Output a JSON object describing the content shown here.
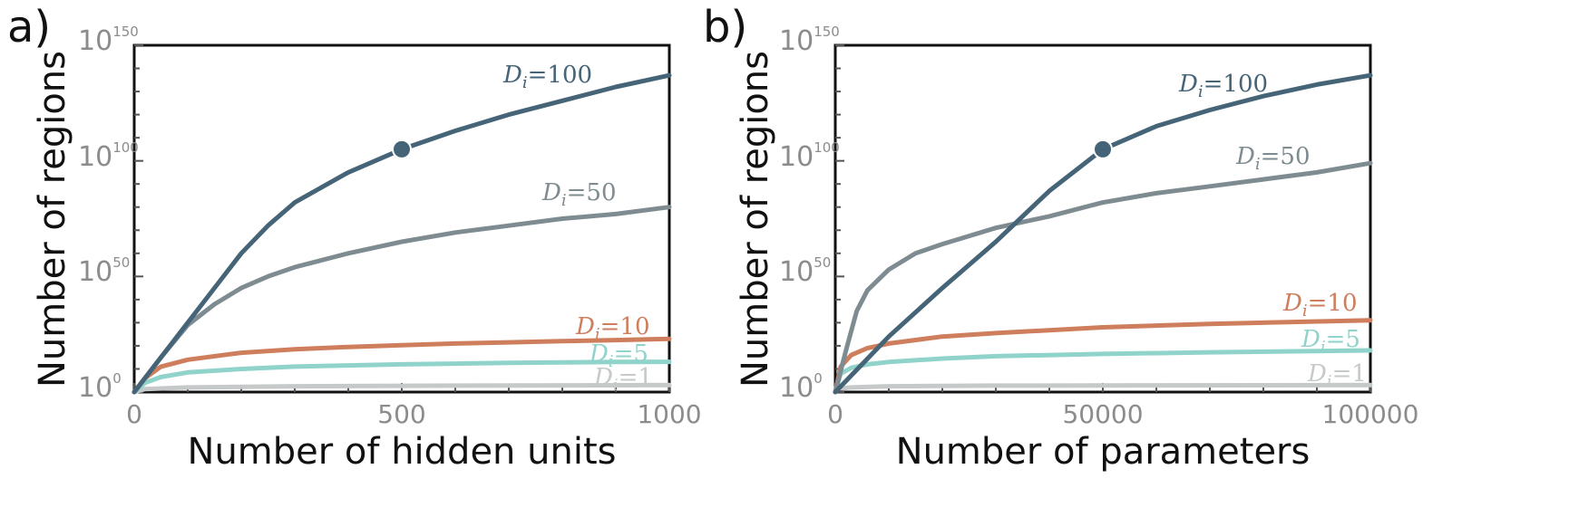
{
  "chart_data": [
    {
      "panel_label": "a)",
      "type": "line",
      "xlabel": "Number of hidden units",
      "ylabel": "Number of regions",
      "xlim": [
        0,
        1000
      ],
      "ylim_log10": [
        0,
        150
      ],
      "y_scale": "log",
      "x_ticks": [
        "0",
        "500",
        "1000"
      ],
      "y_ticks": [
        {
          "base": "10",
          "exp": "0"
        },
        {
          "base": "10",
          "exp": "50"
        },
        {
          "base": "10",
          "exp": "100"
        },
        {
          "base": "10",
          "exp": "150"
        }
      ],
      "grid": false,
      "series": [
        {
          "name": "100",
          "color": "#456477",
          "x": [
            0,
            50,
            100,
            150,
            200,
            250,
            300,
            400,
            500,
            600,
            700,
            800,
            900,
            1000
          ],
          "log10_y": [
            0,
            15,
            30,
            45,
            60,
            72,
            82,
            95,
            105,
            113,
            120,
            126,
            132,
            137
          ]
        },
        {
          "name": "50",
          "color": "#7e8c91",
          "x": [
            0,
            50,
            100,
            150,
            200,
            250,
            300,
            400,
            500,
            600,
            700,
            800,
            900,
            1000
          ],
          "log10_y": [
            0,
            15,
            29,
            38,
            45,
            50,
            54,
            60,
            65,
            69,
            72,
            75,
            77,
            80
          ]
        },
        {
          "name": "10",
          "color": "#ce7e5d",
          "x": [
            0,
            20,
            50,
            100,
            200,
            300,
            400,
            500,
            600,
            700,
            800,
            900,
            1000
          ],
          "log10_y": [
            0,
            6,
            11,
            14,
            17,
            18.5,
            19.5,
            20.3,
            21,
            21.5,
            22,
            22.5,
            23
          ]
        },
        {
          "name": "5",
          "color": "#8fd3cb",
          "x": [
            0,
            20,
            50,
            100,
            200,
            300,
            400,
            500,
            600,
            700,
            800,
            900,
            1000
          ],
          "log10_y": [
            0,
            4,
            6.5,
            8.5,
            10,
            11,
            11.5,
            12,
            12.3,
            12.6,
            12.8,
            13,
            13.1
          ]
        },
        {
          "name": "1",
          "color": "#c5c9c9",
          "x": [
            0,
            20,
            100,
            300,
            500,
            1000
          ],
          "log10_y": [
            0,
            1.3,
            2,
            2.5,
            2.7,
            3
          ]
        }
      ],
      "highlight_point": {
        "series": "100",
        "x": 500,
        "log10_y": 105
      }
    },
    {
      "panel_label": "b)",
      "type": "line",
      "xlabel": "Number of parameters",
      "ylabel": "Number of regions",
      "xlim": [
        0,
        100000
      ],
      "ylim_log10": [
        0,
        150
      ],
      "y_scale": "log",
      "x_ticks": [
        "0",
        "50000",
        "100000"
      ],
      "y_ticks": [
        {
          "base": "10",
          "exp": "0"
        },
        {
          "base": "10",
          "exp": "50"
        },
        {
          "base": "10",
          "exp": "100"
        },
        {
          "base": "10",
          "exp": "150"
        }
      ],
      "grid": false,
      "series": [
        {
          "name": "100",
          "color": "#456477",
          "x": [
            0,
            5000,
            10000,
            20000,
            30000,
            40000,
            50000,
            60000,
            70000,
            80000,
            90000,
            100000
          ],
          "log10_y": [
            0,
            12,
            24,
            45,
            65,
            87,
            105,
            115,
            122,
            128,
            133,
            137
          ]
        },
        {
          "name": "50",
          "color": "#7e8c91",
          "x": [
            0,
            2000,
            4000,
            6000,
            10000,
            15000,
            20000,
            30000,
            40000,
            50000,
            60000,
            70000,
            80000,
            90000,
            100000
          ],
          "log10_y": [
            0,
            18,
            35,
            44,
            53,
            60,
            64,
            71,
            76,
            82,
            86,
            89,
            92,
            95,
            99
          ]
        },
        {
          "name": "10",
          "color": "#ce7e5d",
          "x": [
            0,
            1000,
            3000,
            6000,
            10000,
            20000,
            30000,
            50000,
            70000,
            100000
          ],
          "log10_y": [
            0,
            11,
            16,
            19,
            21,
            24,
            25.5,
            28,
            29.5,
            31
          ]
        },
        {
          "name": "5",
          "color": "#8fd3cb",
          "x": [
            0,
            1000,
            3000,
            6000,
            10000,
            20000,
            30000,
            50000,
            70000,
            100000
          ],
          "log10_y": [
            0,
            8,
            10.5,
            12,
            13,
            14.5,
            15.5,
            16.5,
            17.2,
            18
          ]
        },
        {
          "name": "1",
          "color": "#c5c9c9",
          "x": [
            0,
            500,
            3000,
            10000,
            30000,
            100000
          ],
          "log10_y": [
            0,
            1.5,
            2,
            2.5,
            2.8,
            3
          ]
        }
      ],
      "highlight_point": {
        "series": "100",
        "x": 50000,
        "log10_y": 105
      }
    }
  ],
  "series_label_prefix": "D",
  "series_label_sub": "i",
  "series_label_eq": "="
}
